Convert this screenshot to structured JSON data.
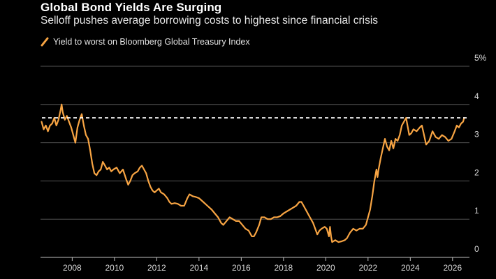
{
  "title": "Global Bond Yields Are Surging",
  "subtitle": "Selloff pushes average borrowing costs to highest since financial crisis",
  "colors": {
    "background": "#000000",
    "series": "#f7a443",
    "grid": "#555555",
    "reference": "#ffffff",
    "text": "#ffffff"
  },
  "chart_data": {
    "type": "line",
    "title": "Global Bond Yields Are Surging",
    "subtitle": "Selloff pushes average borrowing costs to highest since financial crisis",
    "xlabel": "",
    "ylabel": "",
    "x_range": [
      2006.5,
      2026.8
    ],
    "ylim": [
      0,
      5
    ],
    "y_unit": "%",
    "grid": true,
    "legend_position": "top-left",
    "x_ticks": [
      {
        "label": "2008",
        "value": 2008
      },
      {
        "label": "2010",
        "value": 2010
      },
      {
        "label": "2012",
        "value": 2012
      },
      {
        "label": "2014",
        "value": 2014
      },
      {
        "label": "2016",
        "value": 2016
      },
      {
        "label": "2018",
        "value": 2018
      },
      {
        "label": "2020",
        "value": 2020
      },
      {
        "label": "2022",
        "value": 2022
      },
      {
        "label": "2024",
        "value": 2024
      },
      {
        "label": "2026",
        "value": 2026
      }
    ],
    "y_ticks": [
      {
        "label": "5%",
        "value": 5
      },
      {
        "label": "4",
        "value": 4
      },
      {
        "label": "3",
        "value": 3
      },
      {
        "label": "2",
        "value": 2
      },
      {
        "label": "1",
        "value": 1
      },
      {
        "label": "0",
        "value": 0
      }
    ],
    "reference_line": {
      "value": 3.65,
      "style": "dashed"
    },
    "series": [
      {
        "name": "Yield to worst on Bloomberg Global Treasury Index",
        "color": "#f7a443",
        "points": [
          [
            2006.55,
            3.55
          ],
          [
            2006.65,
            3.35
          ],
          [
            2006.75,
            3.45
          ],
          [
            2006.85,
            3.3
          ],
          [
            2006.95,
            3.45
          ],
          [
            2007.05,
            3.5
          ],
          [
            2007.15,
            3.65
          ],
          [
            2007.25,
            3.45
          ],
          [
            2007.35,
            3.6
          ],
          [
            2007.45,
            3.85
          ],
          [
            2007.5,
            4.0
          ],
          [
            2007.55,
            3.8
          ],
          [
            2007.65,
            3.6
          ],
          [
            2007.75,
            3.7
          ],
          [
            2007.85,
            3.55
          ],
          [
            2007.95,
            3.4
          ],
          [
            2008.05,
            3.2
          ],
          [
            2008.15,
            3.0
          ],
          [
            2008.25,
            3.4
          ],
          [
            2008.35,
            3.6
          ],
          [
            2008.45,
            3.75
          ],
          [
            2008.55,
            3.45
          ],
          [
            2008.65,
            3.2
          ],
          [
            2008.75,
            3.1
          ],
          [
            2008.85,
            2.8
          ],
          [
            2008.95,
            2.45
          ],
          [
            2009.05,
            2.2
          ],
          [
            2009.15,
            2.15
          ],
          [
            2009.25,
            2.25
          ],
          [
            2009.35,
            2.3
          ],
          [
            2009.45,
            2.5
          ],
          [
            2009.55,
            2.4
          ],
          [
            2009.65,
            2.3
          ],
          [
            2009.75,
            2.35
          ],
          [
            2009.85,
            2.25
          ],
          [
            2009.95,
            2.3
          ],
          [
            2010.1,
            2.35
          ],
          [
            2010.25,
            2.2
          ],
          [
            2010.4,
            2.3
          ],
          [
            2010.55,
            2.05
          ],
          [
            2010.65,
            1.9
          ],
          [
            2010.75,
            2.0
          ],
          [
            2010.85,
            2.15
          ],
          [
            2010.95,
            2.2
          ],
          [
            2011.1,
            2.25
          ],
          [
            2011.2,
            2.35
          ],
          [
            2011.3,
            2.4
          ],
          [
            2011.4,
            2.3
          ],
          [
            2011.5,
            2.2
          ],
          [
            2011.6,
            2.0
          ],
          [
            2011.7,
            1.85
          ],
          [
            2011.8,
            1.75
          ],
          [
            2011.9,
            1.7
          ],
          [
            2012.0,
            1.75
          ],
          [
            2012.1,
            1.8
          ],
          [
            2012.2,
            1.7
          ],
          [
            2012.35,
            1.65
          ],
          [
            2012.5,
            1.55
          ],
          [
            2012.6,
            1.45
          ],
          [
            2012.7,
            1.4
          ],
          [
            2012.85,
            1.42
          ],
          [
            2013.0,
            1.4
          ],
          [
            2013.15,
            1.35
          ],
          [
            2013.3,
            1.35
          ],
          [
            2013.45,
            1.55
          ],
          [
            2013.55,
            1.65
          ],
          [
            2013.7,
            1.6
          ],
          [
            2013.85,
            1.58
          ],
          [
            2014.0,
            1.55
          ],
          [
            2014.2,
            1.45
          ],
          [
            2014.4,
            1.35
          ],
          [
            2014.6,
            1.25
          ],
          [
            2014.75,
            1.15
          ],
          [
            2014.9,
            1.05
          ],
          [
            2015.05,
            0.9
          ],
          [
            2015.15,
            0.85
          ],
          [
            2015.3,
            0.95
          ],
          [
            2015.45,
            1.05
          ],
          [
            2015.6,
            1.0
          ],
          [
            2015.75,
            0.95
          ],
          [
            2015.9,
            0.95
          ],
          [
            2016.05,
            0.85
          ],
          [
            2016.2,
            0.75
          ],
          [
            2016.35,
            0.7
          ],
          [
            2016.5,
            0.55
          ],
          [
            2016.6,
            0.55
          ],
          [
            2016.7,
            0.65
          ],
          [
            2016.85,
            0.85
          ],
          [
            2016.95,
            1.05
          ],
          [
            2017.1,
            1.05
          ],
          [
            2017.25,
            1.0
          ],
          [
            2017.4,
            1.0
          ],
          [
            2017.55,
            1.05
          ],
          [
            2017.7,
            1.05
          ],
          [
            2017.85,
            1.08
          ],
          [
            2018.0,
            1.15
          ],
          [
            2018.15,
            1.2
          ],
          [
            2018.3,
            1.25
          ],
          [
            2018.45,
            1.3
          ],
          [
            2018.6,
            1.35
          ],
          [
            2018.75,
            1.45
          ],
          [
            2018.85,
            1.45
          ],
          [
            2018.95,
            1.35
          ],
          [
            2019.1,
            1.2
          ],
          [
            2019.25,
            1.05
          ],
          [
            2019.4,
            0.9
          ],
          [
            2019.5,
            0.75
          ],
          [
            2019.6,
            0.6
          ],
          [
            2019.7,
            0.7
          ],
          [
            2019.8,
            0.75
          ],
          [
            2019.95,
            0.8
          ],
          [
            2020.05,
            0.75
          ],
          [
            2020.15,
            0.55
          ],
          [
            2020.2,
            0.8
          ],
          [
            2020.25,
            0.55
          ],
          [
            2020.3,
            0.4
          ],
          [
            2020.45,
            0.45
          ],
          [
            2020.6,
            0.4
          ],
          [
            2020.75,
            0.42
          ],
          [
            2020.9,
            0.45
          ],
          [
            2021.0,
            0.5
          ],
          [
            2021.15,
            0.65
          ],
          [
            2021.3,
            0.75
          ],
          [
            2021.45,
            0.7
          ],
          [
            2021.6,
            0.75
          ],
          [
            2021.75,
            0.75
          ],
          [
            2021.9,
            0.85
          ],
          [
            2022.0,
            1.05
          ],
          [
            2022.1,
            1.25
          ],
          [
            2022.2,
            1.6
          ],
          [
            2022.3,
            2.0
          ],
          [
            2022.4,
            2.3
          ],
          [
            2022.45,
            2.1
          ],
          [
            2022.5,
            2.3
          ],
          [
            2022.6,
            2.6
          ],
          [
            2022.7,
            2.85
          ],
          [
            2022.8,
            3.1
          ],
          [
            2022.9,
            2.9
          ],
          [
            2023.0,
            2.8
          ],
          [
            2023.1,
            3.05
          ],
          [
            2023.2,
            2.85
          ],
          [
            2023.3,
            3.1
          ],
          [
            2023.4,
            3.05
          ],
          [
            2023.5,
            3.2
          ],
          [
            2023.6,
            3.45
          ],
          [
            2023.7,
            3.55
          ],
          [
            2023.8,
            3.65
          ],
          [
            2023.85,
            3.5
          ],
          [
            2023.95,
            3.2
          ],
          [
            2024.05,
            3.25
          ],
          [
            2024.15,
            3.35
          ],
          [
            2024.3,
            3.3
          ],
          [
            2024.45,
            3.4
          ],
          [
            2024.55,
            3.45
          ],
          [
            2024.65,
            3.2
          ],
          [
            2024.75,
            2.95
          ],
          [
            2024.9,
            3.05
          ],
          [
            2025.05,
            3.3
          ],
          [
            2025.2,
            3.15
          ],
          [
            2025.35,
            3.1
          ],
          [
            2025.5,
            3.2
          ],
          [
            2025.65,
            3.15
          ],
          [
            2025.8,
            3.05
          ],
          [
            2025.95,
            3.1
          ],
          [
            2026.1,
            3.3
          ],
          [
            2026.2,
            3.45
          ],
          [
            2026.3,
            3.4
          ],
          [
            2026.4,
            3.5
          ],
          [
            2026.5,
            3.55
          ],
          [
            2026.55,
            3.65
          ]
        ]
      }
    ]
  }
}
